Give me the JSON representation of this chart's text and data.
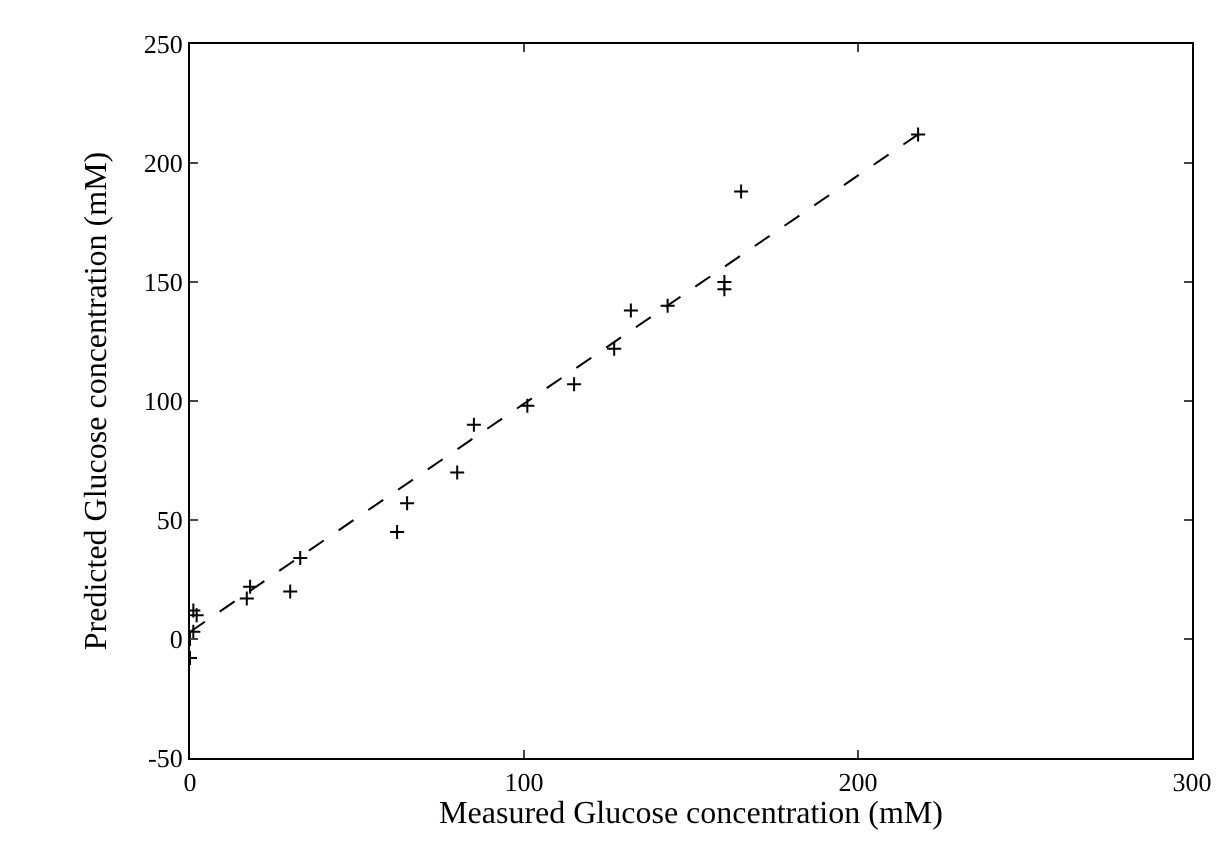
{
  "chart_data": {
    "type": "scatter",
    "xlabel": "Measured Glucose concentration (mM)",
    "ylabel": "Predicted Glucose concentration (mM)",
    "xlim": [
      0,
      300
    ],
    "ylim": [
      -50,
      250
    ],
    "xticks": [
      0,
      100,
      200,
      300
    ],
    "yticks": [
      -50,
      0,
      50,
      100,
      150,
      200,
      250
    ],
    "grid": false,
    "series": [
      {
        "marker": "cross",
        "color": "#000000",
        "x": [
          0,
          0,
          1,
          2,
          1,
          17,
          18,
          30,
          33,
          62,
          65,
          80,
          85,
          101,
          115,
          127,
          132,
          143,
          160,
          160,
          165,
          218
        ],
        "values": [
          -8,
          0,
          3,
          10,
          12,
          17,
          22,
          20,
          34,
          45,
          57,
          70,
          90,
          98,
          107,
          122,
          138,
          140,
          150,
          147,
          188,
          212
        ]
      },
      {
        "type": "line",
        "color": "#000000",
        "line_style": "dashed",
        "x": [
          0,
          218
        ],
        "values": [
          3,
          212
        ]
      }
    ]
  }
}
